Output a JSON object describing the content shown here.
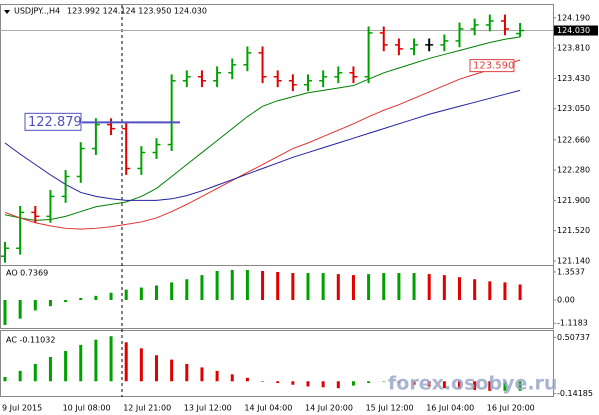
{
  "chart_data": [
    {
      "type": "ohlc",
      "title": "USDJPY..,H4",
      "ohlc_text": "123.992 124.124 123.950 124.030",
      "categories": [
        "9 Jul 2015",
        null,
        null,
        null,
        "10 Jul 08:00",
        null,
        null,
        null,
        "12 Jul 21:00",
        null,
        null,
        null,
        "13 Jul 12:00",
        null,
        null,
        null,
        "14 Jul 04:00",
        null,
        null,
        null,
        "14 Jul 20:00",
        null,
        null,
        null,
        "15 Jul 12:00",
        null,
        null,
        null,
        "16 Jul 04:00",
        null,
        null,
        null,
        "16 Jul 20:00",
        null,
        null
      ],
      "open": [
        121.2,
        121.3,
        121.75,
        121.7,
        121.95,
        122.2,
        122.55,
        122.85,
        122.8,
        122.3,
        122.5,
        122.6,
        123.4,
        123.45,
        123.4,
        123.5,
        123.6,
        123.75,
        123.45,
        123.4,
        123.35,
        123.4,
        123.45,
        123.5,
        123.45,
        124.0,
        123.85,
        123.8,
        123.85,
        123.85,
        123.9,
        124.05,
        124.1,
        124.15,
        123.992
      ],
      "high": [
        121.38,
        121.83,
        121.83,
        122.03,
        122.28,
        122.63,
        122.93,
        122.93,
        122.88,
        122.58,
        122.68,
        123.48,
        123.53,
        123.53,
        123.58,
        123.68,
        123.83,
        123.83,
        123.53,
        123.48,
        123.48,
        123.53,
        123.58,
        123.58,
        124.08,
        124.08,
        123.93,
        123.93,
        123.93,
        123.98,
        124.13,
        124.18,
        124.23,
        124.23,
        124.124
      ],
      "low": [
        121.12,
        121.22,
        121.62,
        121.62,
        121.87,
        122.12,
        122.47,
        122.72,
        122.22,
        122.22,
        122.42,
        122.52,
        123.32,
        123.32,
        123.32,
        123.42,
        123.52,
        123.37,
        123.32,
        123.27,
        123.27,
        123.32,
        123.37,
        123.37,
        123.37,
        123.77,
        123.72,
        123.72,
        123.77,
        123.77,
        123.82,
        123.97,
        124.02,
        123.97,
        123.95
      ],
      "close": [
        121.3,
        121.75,
        121.7,
        121.95,
        122.2,
        122.55,
        122.85,
        122.8,
        122.3,
        122.5,
        122.6,
        123.4,
        123.45,
        123.4,
        123.5,
        123.6,
        123.75,
        123.45,
        123.4,
        123.35,
        123.4,
        123.45,
        123.5,
        123.45,
        124.0,
        123.85,
        123.8,
        123.85,
        123.85,
        123.9,
        124.05,
        124.1,
        124.15,
        124.05,
        124.03
      ],
      "up_color": "#00a000",
      "down_color": "#e00000",
      "ylim": [
        121.09,
        124.35
      ],
      "yticks": [
        {
          "value": 124.19,
          "label": "124.190"
        },
        {
          "value": 123.81,
          "label": "123.810"
        },
        {
          "value": 123.43,
          "label": "123.430"
        },
        {
          "value": 123.05,
          "label": "123.050"
        },
        {
          "value": 122.66,
          "label": "122.660"
        },
        {
          "value": 122.28,
          "label": "122.280"
        },
        {
          "value": 121.9,
          "label": "121.900"
        },
        {
          "value": 121.52,
          "label": "121.520"
        },
        {
          "value": 121.14,
          "label": "121.140"
        }
      ],
      "series": [
        {
          "color": "#008000",
          "values": [
            121.72,
            121.68,
            121.65,
            121.66,
            121.7,
            121.76,
            121.82,
            121.85,
            121.88,
            121.95,
            122.05,
            122.2,
            122.35,
            122.5,
            122.65,
            122.8,
            122.95,
            123.08,
            123.15,
            123.2,
            123.25,
            123.28,
            123.31,
            123.34,
            123.42,
            123.5,
            123.56,
            123.62,
            123.68,
            123.73,
            123.78,
            123.83,
            123.88,
            123.92,
            123.95
          ]
        },
        {
          "color": "#e03030",
          "values": [
            121.75,
            121.68,
            121.62,
            121.58,
            121.55,
            121.54,
            121.55,
            121.57,
            121.6,
            121.63,
            121.68,
            121.76,
            121.85,
            121.95,
            122.05,
            122.15,
            122.25,
            122.35,
            122.45,
            122.55,
            122.62,
            122.7,
            122.78,
            122.86,
            122.95,
            123.03,
            123.1,
            123.18,
            123.26,
            123.34,
            123.42,
            123.48,
            123.54,
            123.6,
            123.66
          ]
        },
        {
          "color": "#2020a0",
          "values": [
            122.62,
            122.48,
            122.35,
            122.22,
            122.1,
            122.0,
            121.95,
            121.92,
            121.9,
            121.9,
            121.9,
            121.92,
            121.96,
            122.02,
            122.09,
            122.16,
            122.23,
            122.3,
            122.37,
            122.44,
            122.5,
            122.56,
            122.62,
            122.68,
            122.74,
            122.8,
            122.86,
            122.92,
            122.98,
            123.03,
            123.08,
            123.13,
            123.18,
            123.23,
            123.28
          ]
        }
      ],
      "level": {
        "value": 122.879,
        "color": "#5050c0"
      },
      "price_marker": {
        "value": 123.59,
        "label": "123.590",
        "color": "#e04040"
      },
      "current_price": {
        "value": 124.03,
        "label": "124.030"
      }
    },
    {
      "type": "bar",
      "title": "AO 0.7369",
      "up_color": "#00a000",
      "down_color": "#e00000",
      "values": [
        -1.2,
        -0.9,
        -0.5,
        -0.3,
        -0.1,
        0.1,
        0.2,
        0.35,
        0.5,
        0.6,
        0.7,
        0.85,
        1.0,
        1.2,
        1.4,
        1.45,
        1.45,
        1.4,
        1.35,
        1.3,
        1.3,
        1.3,
        1.25,
        1.2,
        1.25,
        1.3,
        1.3,
        1.3,
        1.25,
        1.2,
        1.1,
        1.0,
        0.9,
        0.85,
        0.75
      ],
      "ylim": [
        -1.35,
        1.64
      ],
      "yticks": [
        1.3537,
        {
          "value": 0,
          "label": "0.00"
        },
        -1.1183
      ]
    },
    {
      "type": "bar",
      "title": "AC -0.11032",
      "up_color": "#00a000",
      "down_color": "#e00000",
      "values": [
        0.05,
        0.12,
        0.2,
        0.28,
        0.35,
        0.42,
        0.48,
        0.52,
        0.45,
        0.38,
        0.3,
        0.25,
        0.2,
        0.16,
        0.12,
        0.08,
        0.04,
        0.0,
        -0.02,
        -0.04,
        -0.06,
        -0.07,
        -0.08,
        -0.05,
        -0.02,
        0.0,
        -0.02,
        -0.04,
        -0.06,
        -0.08,
        -0.09,
        -0.1,
        -0.11,
        -0.11,
        -0.11
      ],
      "ylim": [
        -0.17,
        0.58
      ],
      "yticks": [
        0.50737,
        -0.14185
      ]
    }
  ],
  "watermark": "forex.osobye.ru"
}
